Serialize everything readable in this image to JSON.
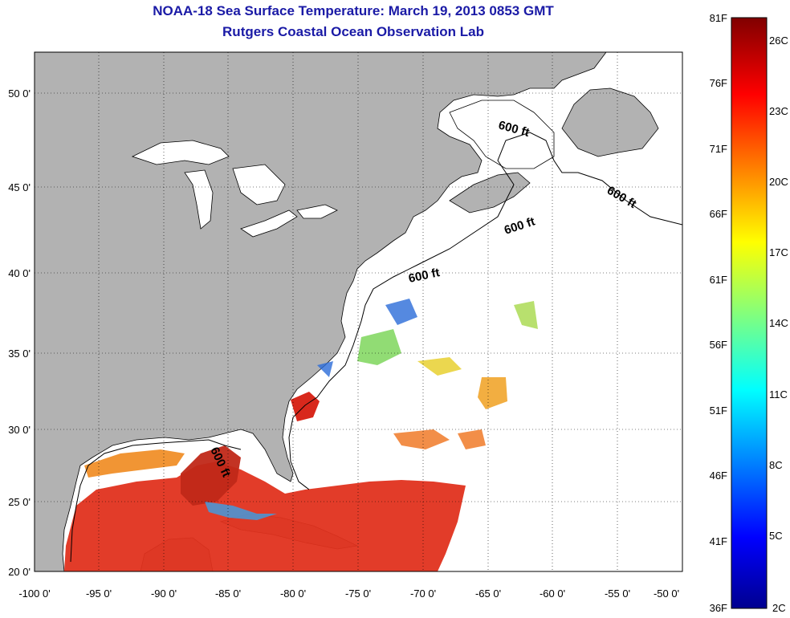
{
  "title": "NOAA-18 Sea Surface Temperature:  March 19, 2013 0853 GMT",
  "subtitle": "Rutgers Coastal Ocean Observation Lab",
  "map": {
    "lon_labels": [
      "-100 0'",
      "-95 0'",
      "-90 0'",
      "-85 0'",
      "-80 0'",
      "-75 0'",
      "-70 0'",
      "-65 0'",
      "-60 0'",
      "-55 0'",
      "-50 0'"
    ],
    "lat_labels": [
      "50 0'",
      "45 0'",
      "40 0'",
      "35 0'",
      "30 0'",
      "25 0'",
      "20 0'"
    ],
    "contour_labels": [
      "600 ft",
      "600 ft",
      "600 ft",
      "600 ft",
      "600 ft"
    ],
    "colors": {
      "land": "#b2b2b2",
      "water_no_data": "#ffffff",
      "grid": "#000000"
    }
  },
  "colorbar": {
    "fahrenheit_labels": [
      "81F",
      "76F",
      "71F",
      "66F",
      "61F",
      "56F",
      "51F",
      "46F",
      "41F",
      "36F"
    ],
    "celsius_labels": [
      "26C",
      "23C",
      "20C",
      "17C",
      "14C",
      "11C",
      "8C",
      "5C",
      "2C"
    ],
    "colormap": "jet",
    "range_f": [
      36,
      81
    ],
    "range_c": [
      2,
      27
    ]
  }
}
